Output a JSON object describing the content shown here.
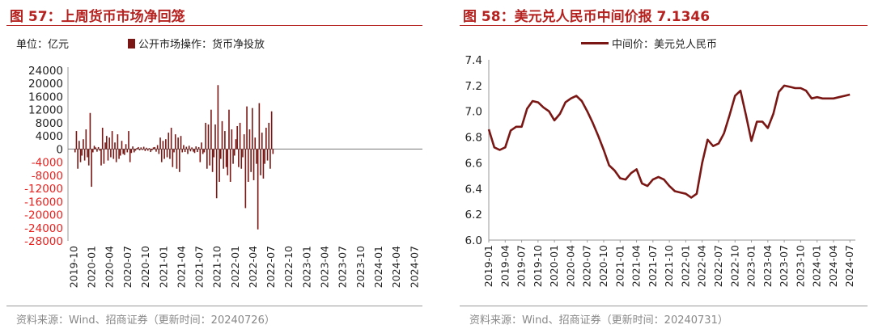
{
  "left": {
    "title": "图 57：上周货币市场净回笼",
    "unit": "单位：亿元",
    "legend": "公开市场操作：货币净投放",
    "source": "资料来源：Wind、招商证券（更新时间：20240726）"
  },
  "right": {
    "title": "图 58：美元兑人民币中间价报 7.1346",
    "legend": "中间价：美元兑人民币",
    "source": "资料来源：Wind、招商证券（更新时间：20240731）"
  },
  "chart_data": [
    {
      "type": "bar",
      "title": "图 57：上周货币市场净回笼",
      "ylabel": "单位：亿元",
      "ylim": [
        -28000,
        24000
      ],
      "yticks": [
        "24000",
        "20000",
        "16000",
        "12000",
        "8000",
        "4000",
        "0",
        "-4000",
        "-8000",
        "-12000",
        "-16000",
        "-20000",
        "-24000",
        "-28000"
      ],
      "ytick_values": [
        24000,
        20000,
        16000,
        12000,
        8000,
        4000,
        0,
        -4000,
        -8000,
        -12000,
        -16000,
        -20000,
        -24000,
        -28000
      ],
      "negative_tick_color": "#e8211e",
      "xticks": [
        "2019-10",
        "2020-01",
        "2020-04",
        "2020-07",
        "2020-10",
        "2021-01",
        "2021-04",
        "2021-07",
        "2021-10",
        "2022-01",
        "2022-04",
        "2022-07",
        "2022-10",
        "2023-01",
        "2023-04",
        "2023-07",
        "2023-10",
        "2024-01",
        "2024-04",
        "2024-07"
      ],
      "series": [
        {
          "name": "公开市场操作：货币净投放",
          "color": "#7a1714",
          "x_start": "2019-10-07",
          "x_step_days": 7,
          "values": [
            -1000,
            5500,
            -6000,
            2500,
            -4000,
            -2000,
            3000,
            -3500,
            6000,
            -2500,
            -5000,
            11000,
            -11500,
            -1000,
            1000,
            500,
            -800,
            600,
            -500,
            -5000,
            6500,
            -4500,
            2000,
            4000,
            -3500,
            3500,
            -2500,
            5500,
            -3000,
            2000,
            -4000,
            4500,
            -3000,
            -2000,
            2500,
            -1500,
            -1800,
            1500,
            -1000,
            5500,
            -4000,
            -1200,
            800,
            -1000,
            -500,
            300,
            600,
            -400,
            500,
            -300,
            700,
            -600,
            400,
            -500,
            300,
            -900,
            -400,
            500,
            600,
            -800,
            1200,
            -1500,
            3500,
            -4000,
            2500,
            -3000,
            3000,
            -2500,
            5000,
            -3000,
            6500,
            -5500,
            -1000,
            4500,
            -6000,
            3500,
            -7000,
            4000,
            -1000,
            1200,
            -900,
            700,
            -1500,
            1000,
            -700,
            500,
            -800,
            -1200,
            800,
            -900,
            600,
            -4000,
            2000,
            -1500,
            -1000,
            8000,
            -6000,
            7500,
            -5000,
            12000,
            -7000,
            -2500,
            7500,
            -15000,
            19500,
            -10000,
            -3000,
            8500,
            -6000,
            5500,
            -5500,
            -8000,
            12000,
            -10000,
            6000,
            -4500,
            -2000,
            3000,
            7000,
            -5500,
            8000,
            -6000,
            -2500,
            4500,
            -18000,
            13000,
            -10000,
            6000,
            -7000,
            12500,
            -9500,
            3500,
            -4500,
            -24500,
            14000,
            -8000,
            5000,
            -9000,
            -4500,
            6500,
            -3500,
            8000,
            -6000,
            11500,
            -1500
          ]
        }
      ]
    },
    {
      "type": "line",
      "title": "图 58：美元兑人民币中间价报 7.1346",
      "ylim": [
        6.0,
        7.4
      ],
      "yticks": [
        "7.4",
        "7.2",
        "7.0",
        "6.8",
        "6.6",
        "6.4",
        "6.2",
        "6.0"
      ],
      "ytick_values": [
        7.4,
        7.2,
        7.0,
        6.8,
        6.6,
        6.4,
        6.2,
        6.0
      ],
      "xticks": [
        "2019-01",
        "2019-04",
        "2019-07",
        "2019-10",
        "2020-01",
        "2020-04",
        "2020-07",
        "2020-10",
        "2021-01",
        "2021-04",
        "2021-07",
        "2021-10",
        "2022-01",
        "2022-04",
        "2022-07",
        "2022-10",
        "2023-01",
        "2023-04",
        "2023-07",
        "2023-10",
        "2024-01",
        "2024-04",
        "2024-07"
      ],
      "series": [
        {
          "name": "中间价：美元兑人民币",
          "color": "#7a1714",
          "x": [
            "2019-01",
            "2019-02",
            "2019-03",
            "2019-04",
            "2019-05",
            "2019-06",
            "2019-07",
            "2019-08",
            "2019-09",
            "2019-10",
            "2019-11",
            "2019-12",
            "2020-01",
            "2020-02",
            "2020-03",
            "2020-04",
            "2020-05",
            "2020-06",
            "2020-07",
            "2020-08",
            "2020-09",
            "2020-10",
            "2020-11",
            "2020-12",
            "2021-01",
            "2021-02",
            "2021-03",
            "2021-04",
            "2021-05",
            "2021-06",
            "2021-07",
            "2021-08",
            "2021-09",
            "2021-10",
            "2021-11",
            "2021-12",
            "2022-01",
            "2022-02",
            "2022-03",
            "2022-04",
            "2022-05",
            "2022-06",
            "2022-07",
            "2022-08",
            "2022-09",
            "2022-10",
            "2022-11",
            "2022-12",
            "2023-01",
            "2023-02",
            "2023-03",
            "2023-04",
            "2023-05",
            "2023-06",
            "2023-07",
            "2023-08",
            "2023-09",
            "2023-10",
            "2023-11",
            "2023-12",
            "2024-01",
            "2024-02",
            "2024-03",
            "2024-04",
            "2024-05",
            "2024-06",
            "2024-07"
          ],
          "values": [
            6.86,
            6.72,
            6.7,
            6.72,
            6.85,
            6.88,
            6.88,
            7.02,
            7.08,
            7.07,
            7.03,
            7.0,
            6.93,
            6.98,
            7.07,
            7.1,
            7.12,
            7.08,
            7.0,
            6.91,
            6.81,
            6.7,
            6.58,
            6.54,
            6.48,
            6.47,
            6.52,
            6.55,
            6.44,
            6.42,
            6.47,
            6.49,
            6.47,
            6.42,
            6.38,
            6.37,
            6.36,
            6.33,
            6.36,
            6.6,
            6.78,
            6.73,
            6.75,
            6.83,
            6.97,
            7.12,
            7.16,
            6.97,
            6.77,
            6.92,
            6.92,
            6.87,
            6.98,
            7.15,
            7.2,
            7.19,
            7.18,
            7.18,
            7.16,
            7.1,
            7.11,
            7.1,
            7.1,
            7.1,
            7.11,
            7.12,
            7.13
          ]
        }
      ]
    }
  ]
}
